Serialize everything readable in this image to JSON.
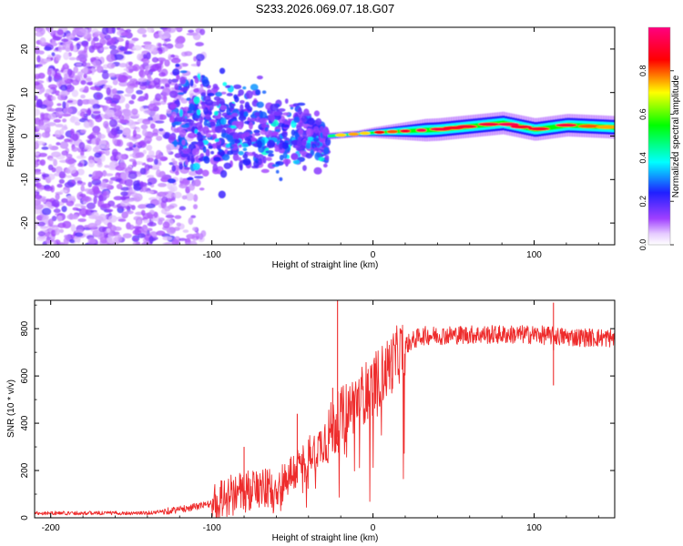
{
  "figure_title": "S233.2026.069.07.18.G07",
  "colors": {
    "snr_line": "#ee2c2c",
    "axis": "#000000",
    "background": "#ffffff"
  },
  "chart_data": [
    {
      "type": "heatmap",
      "name": "spectrogram",
      "title": "S233.2026.069.07.18.G07",
      "xlabel": "Height of straight line (km)",
      "ylabel": "Frequency (Hz)",
      "xlim": [
        -210,
        150
      ],
      "ylim": [
        -25,
        25
      ],
      "xticks": [
        -200,
        -100,
        0,
        100
      ],
      "yticks": [
        -20,
        -10,
        0,
        10,
        20
      ],
      "colorbar": {
        "label": "Normalized spectral amplitude",
        "range": [
          0,
          1
        ],
        "ticks": [
          0.0,
          0.2,
          0.4,
          0.6,
          0.8
        ],
        "tick_labels": [
          "0.0",
          "0.2",
          "0.4",
          "0.6",
          "0.8"
        ],
        "colormap": [
          "#ffffff",
          "#a040ff",
          "#2020ff",
          "#00ffff",
          "#00ff00",
          "#ffff00",
          "#ff0000",
          "#ff0080"
        ]
      },
      "features": {
        "noise_region_x": [
          -210,
          -120
        ],
        "transition_region_x": [
          -125,
          -28
        ],
        "signal_line_x": [
          -28,
          150
        ],
        "signal_line_frequency": [
          {
            "x": -28,
            "y": 0.0
          },
          {
            "x": 0,
            "y": 0.8
          },
          {
            "x": 40,
            "y": 1.5
          },
          {
            "x": 80,
            "y": 3.0
          },
          {
            "x": 100,
            "y": 1.5
          },
          {
            "x": 120,
            "y": 2.5
          },
          {
            "x": 150,
            "y": 2.0
          }
        ]
      }
    },
    {
      "type": "line",
      "name": "snr",
      "title": "",
      "xlabel": "Height of straight line (km)",
      "ylabel": "SNR (10 * v/v)",
      "xlim": [
        -210,
        150
      ],
      "ylim": [
        0,
        920
      ],
      "xticks": [
        -200,
        -100,
        0,
        100
      ],
      "yticks": [
        0,
        200,
        400,
        600,
        800
      ],
      "series": [
        {
          "name": "SNR",
          "mean_curve": [
            {
              "x": -210,
              "y": 20
            },
            {
              "x": -140,
              "y": 20
            },
            {
              "x": -120,
              "y": 35
            },
            {
              "x": -100,
              "y": 60
            },
            {
              "x": -90,
              "y": 90
            },
            {
              "x": -80,
              "y": 110
            },
            {
              "x": -60,
              "y": 130
            },
            {
              "x": -45,
              "y": 220
            },
            {
              "x": -30,
              "y": 330
            },
            {
              "x": -20,
              "y": 420
            },
            {
              "x": -10,
              "y": 500
            },
            {
              "x": 0,
              "y": 560
            },
            {
              "x": 10,
              "y": 640
            },
            {
              "x": 20,
              "y": 730
            },
            {
              "x": 30,
              "y": 770
            },
            {
              "x": 60,
              "y": 775
            },
            {
              "x": 100,
              "y": 775
            },
            {
              "x": 120,
              "y": 765
            },
            {
              "x": 150,
              "y": 760
            }
          ],
          "spikes": [
            {
              "x": -22,
              "y": 920
            },
            {
              "x": -25,
              "y": 550
            },
            {
              "x": -47,
              "y": 440
            },
            {
              "x": -80,
              "y": 300
            },
            {
              "x": 112,
              "y": 910
            }
          ]
        }
      ]
    }
  ]
}
